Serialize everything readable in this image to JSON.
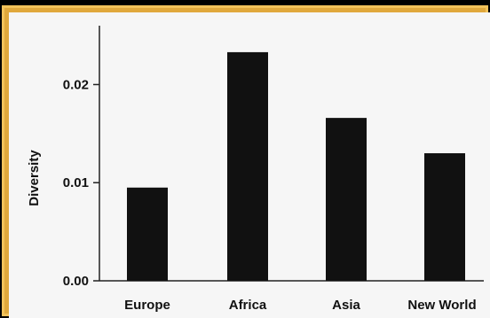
{
  "chart_data": {
    "type": "bar",
    "categories": [
      "Europe",
      "Africa",
      "Asia",
      "New World"
    ],
    "values": [
      0.0095,
      0.0233,
      0.0166,
      0.013
    ],
    "title": "",
    "xlabel": "",
    "ylabel": "Diversity",
    "ylim": [
      0,
      0.026
    ],
    "yticks": [
      0.0,
      0.01,
      0.02
    ],
    "ytick_labels": [
      "0.00",
      "0.01",
      "0.02"
    ],
    "grid": false,
    "bar_color": "#111111"
  },
  "colors": {
    "frame_border": "#e0a83c",
    "plot_background": "#f6f6f6"
  }
}
